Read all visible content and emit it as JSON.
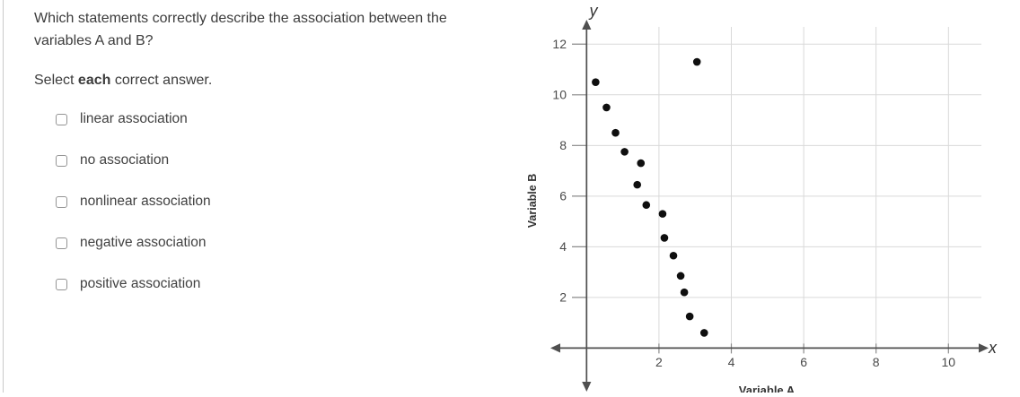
{
  "page": {
    "background": "#ffffff",
    "left_border_color": "#cacaca"
  },
  "question": {
    "text": "Which statements correctly describe the association between the variables A and B?",
    "instruction": {
      "pre": "Select ",
      "bold": "each",
      "post": " correct answer."
    }
  },
  "options": [
    {
      "label": "linear association",
      "checked": false
    },
    {
      "label": "no association",
      "checked": false
    },
    {
      "label": "nonlinear association",
      "checked": false
    },
    {
      "label": "negative association",
      "checked": false
    },
    {
      "label": "positive association",
      "checked": false
    }
  ],
  "chart_data": {
    "type": "scatter",
    "title": "",
    "xlabel": "Variable A",
    "ylabel": "Variable B",
    "x_axis_symbol": "x",
    "y_axis_symbol": "y",
    "x_ticks": [
      2,
      4,
      6,
      8,
      10
    ],
    "y_ticks": [
      2,
      4,
      6,
      8,
      10,
      12
    ],
    "xlim": [
      0,
      11
    ],
    "ylim": [
      0,
      12.7
    ],
    "grid": true,
    "legend": false,
    "points": [
      [
        0.25,
        10.5
      ],
      [
        0.55,
        9.5
      ],
      [
        0.8,
        8.5
      ],
      [
        1.05,
        7.75
      ],
      [
        1.5,
        7.3
      ],
      [
        1.4,
        6.45
      ],
      [
        1.65,
        5.65
      ],
      [
        2.1,
        5.3
      ],
      [
        2.15,
        4.35
      ],
      [
        2.4,
        3.65
      ],
      [
        2.6,
        2.85
      ],
      [
        2.7,
        2.2
      ],
      [
        2.85,
        1.25
      ],
      [
        3.25,
        0.6
      ],
      [
        3.05,
        11.3
      ]
    ],
    "point_color": "#0f0f0f",
    "axis_color": "#4f4f4f",
    "grid_color": "#d9d9d9",
    "tick_color": "#8c8c8c",
    "tick_label_color": "#4a4a4a",
    "axis_label_color": "#333333"
  }
}
